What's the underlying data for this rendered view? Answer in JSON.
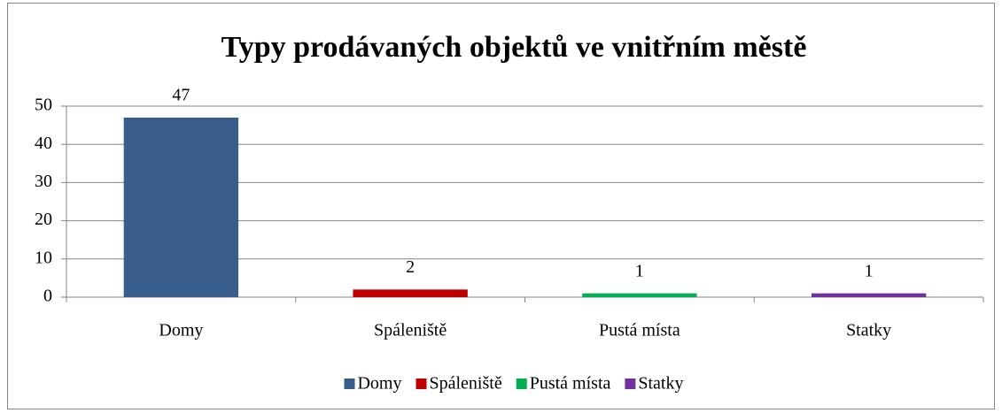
{
  "chart_data": {
    "type": "bar",
    "title": "Typy prodávaných objektů ve vnitřním městě",
    "categories": [
      "Domy",
      "Spáleniště",
      "Pustá místa",
      "Statky"
    ],
    "values": [
      47,
      2,
      1,
      1
    ],
    "colors": [
      "#385d8a",
      "#c00000",
      "#00b050",
      "#7030a0"
    ],
    "ylim": [
      0,
      50
    ],
    "yticks": [
      0,
      10,
      20,
      30,
      40,
      50
    ],
    "grid": true,
    "legend": "bottom"
  }
}
